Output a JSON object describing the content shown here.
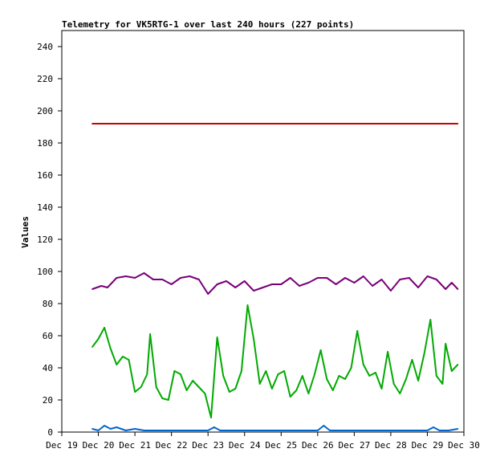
{
  "chart_data": {
    "type": "line",
    "title": "Telemetry for VK5RTG-1 over last 240 hours (227 points)",
    "xlabel": "",
    "ylabel": "Values",
    "ylim": [
      0,
      250
    ],
    "yticks": [
      0,
      20,
      40,
      60,
      80,
      100,
      120,
      140,
      160,
      180,
      200,
      220,
      240
    ],
    "xlim": [
      "Dec 19 00:00",
      "Dec 30 00:00"
    ],
    "xticks": [
      "Dec 19",
      "Dec 20",
      "Dec 21",
      "Dec 22",
      "Dec 23",
      "Dec 24",
      "Dec 25",
      "Dec 26",
      "Dec 27",
      "Dec 28",
      "Dec 29",
      "Dec 30"
    ],
    "grid": false,
    "legend": "none",
    "series": [
      {
        "color": "#cc0000",
        "points": [
          [
            "Dec 19 20:00",
            192
          ],
          [
            "Dec 29 20:00",
            192
          ]
        ]
      },
      {
        "color": "#7a007a",
        "points": [
          [
            "Dec 19 20:00",
            89
          ],
          [
            "Dec 20 02:00",
            91
          ],
          [
            "Dec 20 06:00",
            90
          ],
          [
            "Dec 20 12:00",
            96
          ],
          [
            "Dec 20 18:00",
            97
          ],
          [
            "Dec 21 00:00",
            96
          ],
          [
            "Dec 21 06:00",
            99
          ],
          [
            "Dec 21 12:00",
            95
          ],
          [
            "Dec 21 18:00",
            95
          ],
          [
            "Dec 22 00:00",
            92
          ],
          [
            "Dec 22 06:00",
            96
          ],
          [
            "Dec 22 12:00",
            97
          ],
          [
            "Dec 22 18:00",
            95
          ],
          [
            "Dec 23 00:00",
            86
          ],
          [
            "Dec 23 06:00",
            92
          ],
          [
            "Dec 23 12:00",
            94
          ],
          [
            "Dec 23 18:00",
            90
          ],
          [
            "Dec 24 00:00",
            94
          ],
          [
            "Dec 24 06:00",
            88
          ],
          [
            "Dec 24 12:00",
            90
          ],
          [
            "Dec 24 18:00",
            92
          ],
          [
            "Dec 25 00:00",
            92
          ],
          [
            "Dec 25 06:00",
            96
          ],
          [
            "Dec 25 12:00",
            91
          ],
          [
            "Dec 25 18:00",
            93
          ],
          [
            "Dec 26 00:00",
            96
          ],
          [
            "Dec 26 06:00",
            96
          ],
          [
            "Dec 26 12:00",
            92
          ],
          [
            "Dec 26 18:00",
            96
          ],
          [
            "Dec 27 00:00",
            93
          ],
          [
            "Dec 27 06:00",
            97
          ],
          [
            "Dec 27 12:00",
            91
          ],
          [
            "Dec 27 18:00",
            95
          ],
          [
            "Dec 28 00:00",
            88
          ],
          [
            "Dec 28 06:00",
            95
          ],
          [
            "Dec 28 12:00",
            96
          ],
          [
            "Dec 28 18:00",
            90
          ],
          [
            "Dec 29 00:00",
            97
          ],
          [
            "Dec 29 06:00",
            95
          ],
          [
            "Dec 29 12:00",
            89
          ],
          [
            "Dec 29 16:00",
            93
          ],
          [
            "Dec 29 20:00",
            89
          ]
        ]
      },
      {
        "color": "#00aa00",
        "points": [
          [
            "Dec 19 20:00",
            53
          ],
          [
            "Dec 20 00:00",
            58
          ],
          [
            "Dec 20 04:00",
            65
          ],
          [
            "Dec 20 08:00",
            52
          ],
          [
            "Dec 20 12:00",
            42
          ],
          [
            "Dec 20 16:00",
            47
          ],
          [
            "Dec 20 20:00",
            45
          ],
          [
            "Dec 21 00:00",
            25
          ],
          [
            "Dec 21 04:00",
            28
          ],
          [
            "Dec 21 08:00",
            36
          ],
          [
            "Dec 21 10:00",
            61
          ],
          [
            "Dec 21 14:00",
            28
          ],
          [
            "Dec 21 18:00",
            21
          ],
          [
            "Dec 21 22:00",
            20
          ],
          [
            "Dec 22 02:00",
            38
          ],
          [
            "Dec 22 06:00",
            36
          ],
          [
            "Dec 22 10:00",
            26
          ],
          [
            "Dec 22 14:00",
            32
          ],
          [
            "Dec 22 18:00",
            28
          ],
          [
            "Dec 22 22:00",
            24
          ],
          [
            "Dec 23 02:00",
            9
          ],
          [
            "Dec 23 06:00",
            59
          ],
          [
            "Dec 23 10:00",
            35
          ],
          [
            "Dec 23 14:00",
            25
          ],
          [
            "Dec 23 18:00",
            27
          ],
          [
            "Dec 23 22:00",
            38
          ],
          [
            "Dec 24 02:00",
            79
          ],
          [
            "Dec 24 06:00",
            58
          ],
          [
            "Dec 24 10:00",
            30
          ],
          [
            "Dec 24 14:00",
            38
          ],
          [
            "Dec 24 18:00",
            27
          ],
          [
            "Dec 24 22:00",
            36
          ],
          [
            "Dec 25 02:00",
            38
          ],
          [
            "Dec 25 06:00",
            22
          ],
          [
            "Dec 25 10:00",
            26
          ],
          [
            "Dec 25 14:00",
            35
          ],
          [
            "Dec 25 18:00",
            24
          ],
          [
            "Dec 25 22:00",
            36
          ],
          [
            "Dec 26 02:00",
            51
          ],
          [
            "Dec 26 06:00",
            33
          ],
          [
            "Dec 26 10:00",
            26
          ],
          [
            "Dec 26 14:00",
            35
          ],
          [
            "Dec 26 18:00",
            33
          ],
          [
            "Dec 26 22:00",
            40
          ],
          [
            "Dec 27 02:00",
            63
          ],
          [
            "Dec 27 06:00",
            42
          ],
          [
            "Dec 27 10:00",
            35
          ],
          [
            "Dec 27 14:00",
            37
          ],
          [
            "Dec 27 18:00",
            27
          ],
          [
            "Dec 27 22:00",
            50
          ],
          [
            "Dec 28 02:00",
            30
          ],
          [
            "Dec 28 06:00",
            24
          ],
          [
            "Dec 28 10:00",
            33
          ],
          [
            "Dec 28 14:00",
            45
          ],
          [
            "Dec 28 18:00",
            32
          ],
          [
            "Dec 28 22:00",
            49
          ],
          [
            "Dec 29 02:00",
            70
          ],
          [
            "Dec 29 06:00",
            35
          ],
          [
            "Dec 29 10:00",
            30
          ],
          [
            "Dec 29 12:00",
            55
          ],
          [
            "Dec 29 16:00",
            38
          ],
          [
            "Dec 29 20:00",
            42
          ]
        ]
      },
      {
        "color": "#0066cc",
        "points": [
          [
            "Dec 19 20:00",
            2
          ],
          [
            "Dec 20 00:00",
            1
          ],
          [
            "Dec 20 04:00",
            4
          ],
          [
            "Dec 20 08:00",
            2
          ],
          [
            "Dec 20 12:00",
            3
          ],
          [
            "Dec 20 18:00",
            1
          ],
          [
            "Dec 21 00:00",
            2
          ],
          [
            "Dec 21 06:00",
            1
          ],
          [
            "Dec 21 12:00",
            1
          ],
          [
            "Dec 22 00:00",
            1
          ],
          [
            "Dec 22 12:00",
            1
          ],
          [
            "Dec 23 00:00",
            1
          ],
          [
            "Dec 23 04:00",
            3
          ],
          [
            "Dec 23 08:00",
            1
          ],
          [
            "Dec 24 00:00",
            1
          ],
          [
            "Dec 24 12:00",
            1
          ],
          [
            "Dec 25 00:00",
            1
          ],
          [
            "Dec 25 12:00",
            1
          ],
          [
            "Dec 26 00:00",
            1
          ],
          [
            "Dec 26 04:00",
            4
          ],
          [
            "Dec 26 08:00",
            1
          ],
          [
            "Dec 27 00:00",
            1
          ],
          [
            "Dec 27 12:00",
            1
          ],
          [
            "Dec 28 00:00",
            1
          ],
          [
            "Dec 28 12:00",
            1
          ],
          [
            "Dec 29 00:00",
            1
          ],
          [
            "Dec 29 04:00",
            3
          ],
          [
            "Dec 29 08:00",
            1
          ],
          [
            "Dec 29 14:00",
            1
          ],
          [
            "Dec 29 20:00",
            2
          ]
        ]
      }
    ]
  }
}
